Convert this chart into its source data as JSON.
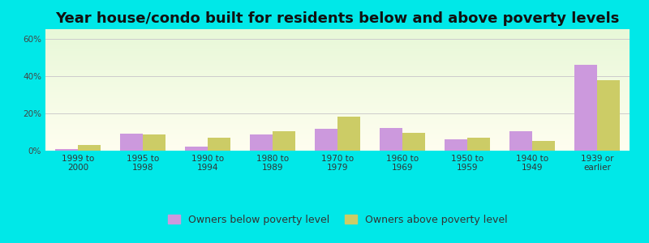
{
  "title": "Year house/condo built for residents below and above poverty levels",
  "categories": [
    "1999 to\n2000",
    "1995 to\n1998",
    "1990 to\n1994",
    "1980 to\n1989",
    "1970 to\n1979",
    "1960 to\n1969",
    "1950 to\n1959",
    "1940 to\n1949",
    "1939 or\nearlier"
  ],
  "below_poverty": [
    1.0,
    9.0,
    2.0,
    8.5,
    11.5,
    12.0,
    6.0,
    10.5,
    46.0
  ],
  "above_poverty": [
    3.0,
    8.5,
    7.0,
    10.5,
    18.0,
    9.5,
    7.0,
    5.0,
    37.5
  ],
  "below_color": "#cc99dd",
  "above_color": "#cccc66",
  "below_label": "Owners below poverty level",
  "above_label": "Owners above poverty level",
  "ylim": [
    0,
    65
  ],
  "yticks": [
    0,
    20,
    40,
    60
  ],
  "figure_bg": "#00e8e8",
  "title_fontsize": 13,
  "tick_fontsize": 7.5,
  "legend_fontsize": 9,
  "bar_width": 0.35,
  "grid_color": "#cccccc"
}
